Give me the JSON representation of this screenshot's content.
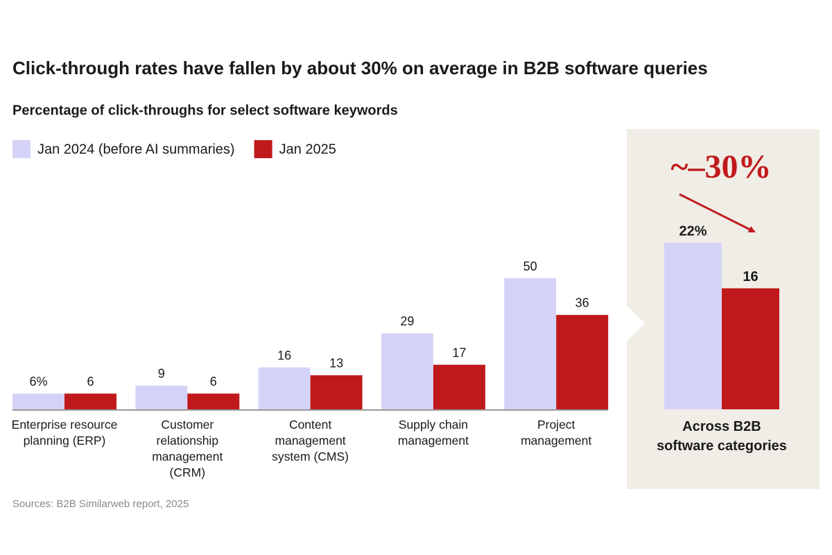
{
  "chart_data": [
    {
      "type": "bar",
      "title": "Click-through rates have fallen by about 30% on average in B2B software queries",
      "subtitle": "Percentage of click-throughs for select software keywords",
      "categories": [
        "Enterprise resource planning (ERP)",
        "Customer relationship management (CRM)",
        "Content management system (CMS)",
        "Supply chain management",
        "Project management"
      ],
      "series": [
        {
          "name": "Jan 2024 (before AI summaries)",
          "color": "#d4d3f7",
          "values": [
            6,
            9,
            16,
            29,
            50
          ],
          "value_labels": [
            "6%",
            "9",
            "16",
            "29",
            "50"
          ]
        },
        {
          "name": "Jan 2025",
          "color": "#c0191c",
          "values": [
            6,
            6,
            13,
            17,
            36
          ]
        }
      ],
      "source": "Sources: B2B Similarweb report, 2025"
    },
    {
      "type": "bar",
      "annotation": "~–30%",
      "categories": [
        "Across B2B software categories"
      ],
      "series": [
        {
          "color": "#d4d3f7",
          "values": [
            22
          ],
          "value_labels": [
            "22%"
          ]
        },
        {
          "color": "#c0191c",
          "values": [
            16
          ]
        }
      ]
    }
  ]
}
